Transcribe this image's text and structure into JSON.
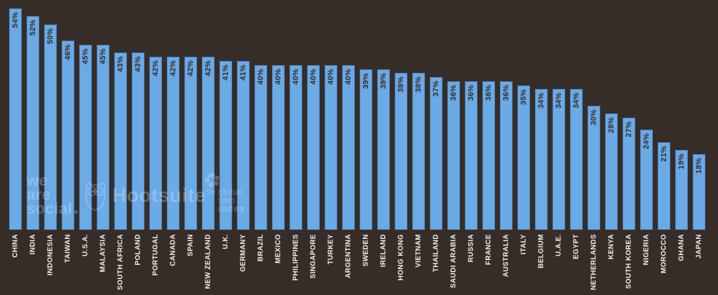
{
  "chart_data": {
    "type": "bar",
    "title": "",
    "xlabel": "",
    "ylabel": "",
    "value_suffix": "%",
    "ylim": [
      0,
      54
    ],
    "grid": false,
    "legend": "none",
    "categories": [
      "CHINA",
      "INDIA",
      "INDONESIA",
      "TAIWAN",
      "U.S.A.",
      "MALAYSIA",
      "SOUTH AFRICA",
      "POLAND",
      "PORTUGAL",
      "CANADA",
      "SPAIN",
      "NEW ZEALAND",
      "U.K.",
      "GERMANY",
      "BRAZIL",
      "MEXICO",
      "PHILIPPINES",
      "SINGAPORE",
      "TURKEY",
      "ARGENTINA",
      "SWEDEN",
      "IRELAND",
      "HONG KONG",
      "VIETNAM",
      "THAILAND",
      "SAUDI ARABIA",
      "RUSSIA",
      "FRANCE",
      "AUSTRALIA",
      "ITALY",
      "BELGIUM",
      "U.A.E.",
      "EGYPT",
      "NETHERLANDS",
      "KENYA",
      "SOUTH KOREA",
      "NIGERIA",
      "MOROCCO",
      "GHANA",
      "JAPAN"
    ],
    "values": [
      54,
      52,
      50,
      46,
      45,
      45,
      43,
      43,
      42,
      42,
      42,
      42,
      41,
      41,
      40,
      40,
      40,
      40,
      40,
      40,
      39,
      39,
      38,
      38,
      37,
      36,
      36,
      36,
      36,
      35,
      34,
      34,
      34,
      30,
      28,
      27,
      24,
      21,
      19,
      18
    ],
    "colors": {
      "background": "#362d29",
      "bar_fill": "#6aaae6",
      "bar_border": "#4e85bc",
      "value_label": "#362d29",
      "category_label": "#f4f0ec"
    }
  },
  "watermarks": {
    "we_are_social": {
      "line1": "we",
      "line2": "are",
      "line3": "social"
    },
    "hootsuite": {
      "label": "Hootsuite",
      "tm": "TM"
    },
    "globalwebindex": {
      "line1": "global",
      "line2": "web",
      "line3": "index"
    }
  }
}
